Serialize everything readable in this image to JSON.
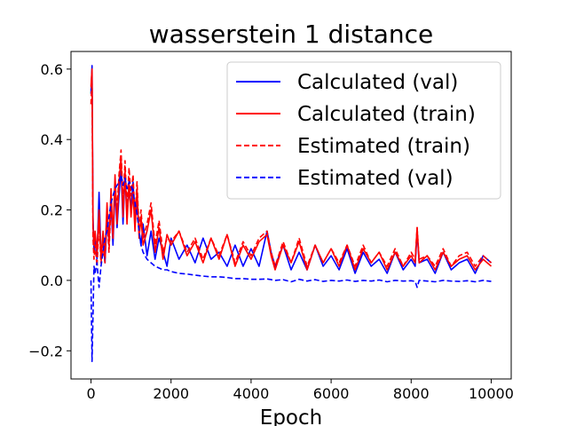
{
  "chart_data": {
    "type": "line",
    "title": "wasserstein 1 distance",
    "xlabel": "Epoch",
    "ylabel": "",
    "xlim": [
      -500,
      10500
    ],
    "ylim": [
      -0.28,
      0.65
    ],
    "x_ticks": [
      0,
      2000,
      4000,
      6000,
      8000,
      10000
    ],
    "x_tick_labels": [
      "0",
      "2000",
      "4000",
      "6000",
      "8000",
      "10000"
    ],
    "y_ticks": [
      -0.2,
      0.0,
      0.2,
      0.4,
      0.6
    ],
    "y_tick_labels": [
      "−0.2",
      "0.0",
      "0.2",
      "0.4",
      "0.6"
    ],
    "grid": false,
    "legend_position": "top-right",
    "x": [
      0,
      25,
      50,
      75,
      100,
      150,
      200,
      250,
      300,
      350,
      400,
      450,
      500,
      550,
      600,
      650,
      700,
      750,
      800,
      850,
      900,
      950,
      1000,
      1050,
      1100,
      1150,
      1200,
      1250,
      1300,
      1400,
      1500,
      1600,
      1700,
      1800,
      1900,
      2000,
      2200,
      2400,
      2600,
      2800,
      3000,
      3200,
      3400,
      3600,
      3800,
      4000,
      4200,
      4400,
      4500,
      4600,
      4800,
      5000,
      5200,
      5400,
      5600,
      5800,
      6000,
      6200,
      6400,
      6600,
      6800,
      7000,
      7200,
      7400,
      7600,
      7800,
      8000,
      8100,
      8150,
      8200,
      8400,
      8600,
      8800,
      9000,
      9200,
      9400,
      9600,
      9800,
      10000
    ],
    "series": [
      {
        "name": "Calculated (val)",
        "color": "#0000ff",
        "dash": "solid",
        "values": [
          0.53,
          0.61,
          0.18,
          0.08,
          0.12,
          0.06,
          0.25,
          0.07,
          0.12,
          0.05,
          0.18,
          0.12,
          0.22,
          0.1,
          0.26,
          0.15,
          0.24,
          0.32,
          0.16,
          0.3,
          0.18,
          0.27,
          0.2,
          0.28,
          0.17,
          0.22,
          0.14,
          0.1,
          0.16,
          0.07,
          0.14,
          0.06,
          0.12,
          0.08,
          0.04,
          0.12,
          0.06,
          0.1,
          0.05,
          0.12,
          0.06,
          0.08,
          0.04,
          0.1,
          0.04,
          0.09,
          0.04,
          0.14,
          0.08,
          0.04,
          0.1,
          0.03,
          0.08,
          0.03,
          0.1,
          0.04,
          0.07,
          0.03,
          0.09,
          0.02,
          0.08,
          0.04,
          0.06,
          0.02,
          0.08,
          0.03,
          0.06,
          0.04,
          0.14,
          0.05,
          0.06,
          0.02,
          0.08,
          0.03,
          0.05,
          0.06,
          0.02,
          0.07,
          0.05
        ]
      },
      {
        "name": "Calculated (train)",
        "color": "#ff0000",
        "dash": "solid",
        "values": [
          0.55,
          0.6,
          0.15,
          0.1,
          0.14,
          0.08,
          0.2,
          0.06,
          0.14,
          0.07,
          0.22,
          0.1,
          0.26,
          0.12,
          0.3,
          0.16,
          0.28,
          0.35,
          0.18,
          0.31,
          0.16,
          0.28,
          0.18,
          0.25,
          0.14,
          0.26,
          0.12,
          0.18,
          0.1,
          0.14,
          0.2,
          0.08,
          0.15,
          0.06,
          0.13,
          0.1,
          0.14,
          0.07,
          0.11,
          0.05,
          0.12,
          0.06,
          0.13,
          0.04,
          0.1,
          0.06,
          0.11,
          0.13,
          0.07,
          0.03,
          0.1,
          0.05,
          0.11,
          0.03,
          0.1,
          0.05,
          0.09,
          0.04,
          0.1,
          0.03,
          0.09,
          0.05,
          0.08,
          0.03,
          0.08,
          0.04,
          0.07,
          0.05,
          0.15,
          0.05,
          0.07,
          0.03,
          0.08,
          0.04,
          0.06,
          0.07,
          0.03,
          0.06,
          0.04
        ]
      },
      {
        "name": "Estimated (train)",
        "color": "#ff0000",
        "dash": "dashed",
        "values": [
          0.5,
          0.58,
          0.12,
          0.06,
          0.1,
          0.04,
          0.16,
          0.05,
          0.1,
          0.05,
          0.18,
          0.08,
          0.22,
          0.12,
          0.28,
          0.2,
          0.3,
          0.37,
          0.22,
          0.34,
          0.2,
          0.32,
          0.24,
          0.3,
          0.18,
          0.28,
          0.14,
          0.2,
          0.12,
          0.16,
          0.22,
          0.1,
          0.17,
          0.08,
          0.12,
          0.11,
          0.14,
          0.08,
          0.12,
          0.06,
          0.12,
          0.07,
          0.13,
          0.05,
          0.11,
          0.07,
          0.12,
          0.14,
          0.08,
          0.04,
          0.11,
          0.05,
          0.12,
          0.04,
          0.1,
          0.05,
          0.09,
          0.05,
          0.1,
          0.04,
          0.1,
          0.05,
          0.08,
          0.04,
          0.09,
          0.04,
          0.08,
          0.06,
          0.15,
          0.06,
          0.07,
          0.04,
          0.09,
          0.04,
          0.07,
          0.08,
          0.04,
          0.07,
          0.05
        ]
      },
      {
        "name": "Estimated (val)",
        "color": "#0000ff",
        "dash": "dashed",
        "values": [
          0.0,
          -0.23,
          -0.1,
          0.04,
          0.02,
          0.05,
          -0.02,
          0.04,
          0.08,
          0.12,
          0.14,
          0.18,
          0.22,
          0.24,
          0.26,
          0.27,
          0.28,
          0.3,
          0.27,
          0.29,
          0.26,
          0.28,
          0.27,
          0.25,
          0.22,
          0.19,
          0.14,
          0.1,
          0.08,
          0.06,
          0.05,
          0.04,
          0.035,
          0.03,
          0.03,
          0.025,
          0.02,
          0.018,
          0.015,
          0.012,
          0.01,
          0.01,
          0.008,
          0.005,
          0.005,
          0.003,
          0.003,
          0.004,
          0.002,
          0.0,
          0.002,
          -0.004,
          0.003,
          -0.002,
          0.002,
          -0.003,
          0.0,
          -0.002,
          0.001,
          -0.003,
          0.0,
          -0.002,
          0.001,
          -0.004,
          0.0,
          -0.002,
          -0.001,
          -0.003,
          -0.02,
          0.0,
          -0.002,
          -0.004,
          0.0,
          -0.002,
          -0.003,
          -0.001,
          -0.004,
          0.0,
          -0.003
        ]
      }
    ]
  }
}
